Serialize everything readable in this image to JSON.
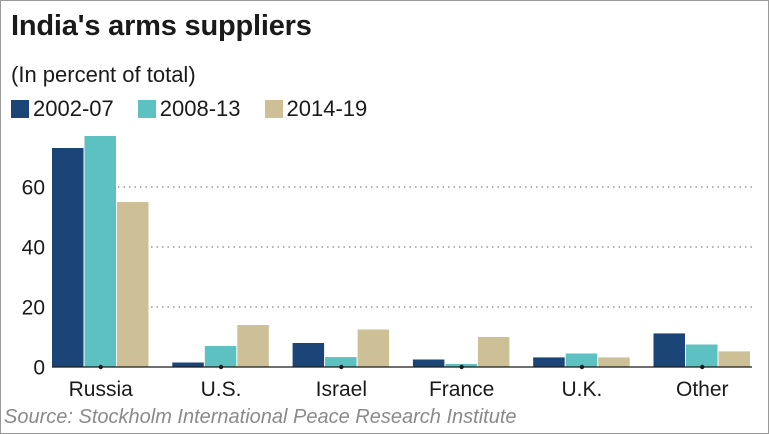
{
  "title": "India's arms suppliers",
  "subtitle": "(In percent of total)",
  "source": "Source: Stockholm International Peace Research Institute",
  "colors": {
    "2002-07": "#1b4577",
    "2008-13": "#5cc1c0",
    "2014-19": "#cdc096"
  },
  "chart_data": {
    "type": "bar",
    "categories": [
      "Russia",
      "U.S.",
      "Israel",
      "France",
      "U.K.",
      "Other"
    ],
    "series": [
      {
        "name": "2002-07",
        "values": [
          73,
          1.5,
          8,
          2.5,
          3.2,
          11.2
        ]
      },
      {
        "name": "2008-13",
        "values": [
          77,
          7,
          3.3,
          1,
          4.5,
          7.5
        ]
      },
      {
        "name": "2014-19",
        "values": [
          55,
          14,
          12.5,
          10,
          3.2,
          5.2
        ]
      }
    ],
    "ylim": [
      0,
      77
    ],
    "yticks": [
      0,
      20,
      40,
      60
    ],
    "grid": true,
    "legend": "top-left"
  }
}
